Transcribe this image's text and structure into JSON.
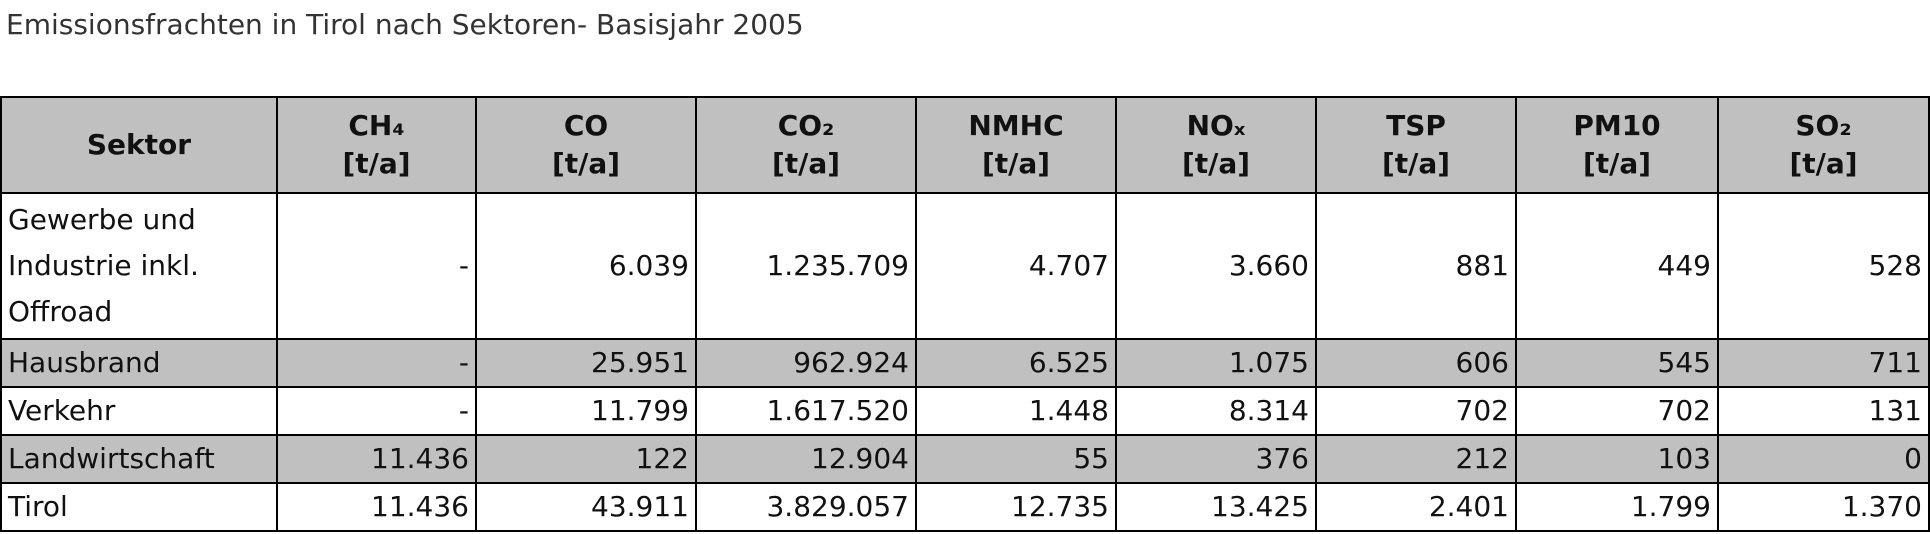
{
  "title": "Emissionsfrachten in Tirol nach Sektoren- Basisjahr 2005",
  "table": {
    "header": [
      {
        "name": "Sektor"
      },
      {
        "name": "CH₄",
        "unit": "[t/a]"
      },
      {
        "name": "CO",
        "unit": "[t/a]"
      },
      {
        "name": "CO₂",
        "unit": "[t/a]"
      },
      {
        "name": "NMHC",
        "unit": "[t/a]"
      },
      {
        "name": "NOₓ",
        "unit": "[t/a]"
      },
      {
        "name": "TSP",
        "unit": "[t/a]"
      },
      {
        "name": "PM10",
        "unit": "[t/a]"
      },
      {
        "name": "SO₂",
        "unit": "[t/a]"
      }
    ],
    "rows": [
      [
        "Gewerbe und Industrie inkl. Offroad",
        "-",
        "6.039",
        "1.235.709",
        "4.707",
        "3.660",
        "881",
        "449",
        "528"
      ],
      [
        "Hausbrand",
        "-",
        "25.951",
        "962.924",
        "6.525",
        "1.075",
        "606",
        "545",
        "711"
      ],
      [
        "Verkehr",
        "-",
        "11.799",
        "1.617.520",
        "1.448",
        "8.314",
        "702",
        "702",
        "131"
      ],
      [
        "Landwirtschaft",
        "11.436",
        "122",
        "12.904",
        "55",
        "376",
        "212",
        "103",
        "0"
      ],
      [
        "Tirol",
        "11.436",
        "43.911",
        "3.829.057",
        "12.735",
        "13.425",
        "2.401",
        "1.799",
        "1.370"
      ]
    ]
  }
}
